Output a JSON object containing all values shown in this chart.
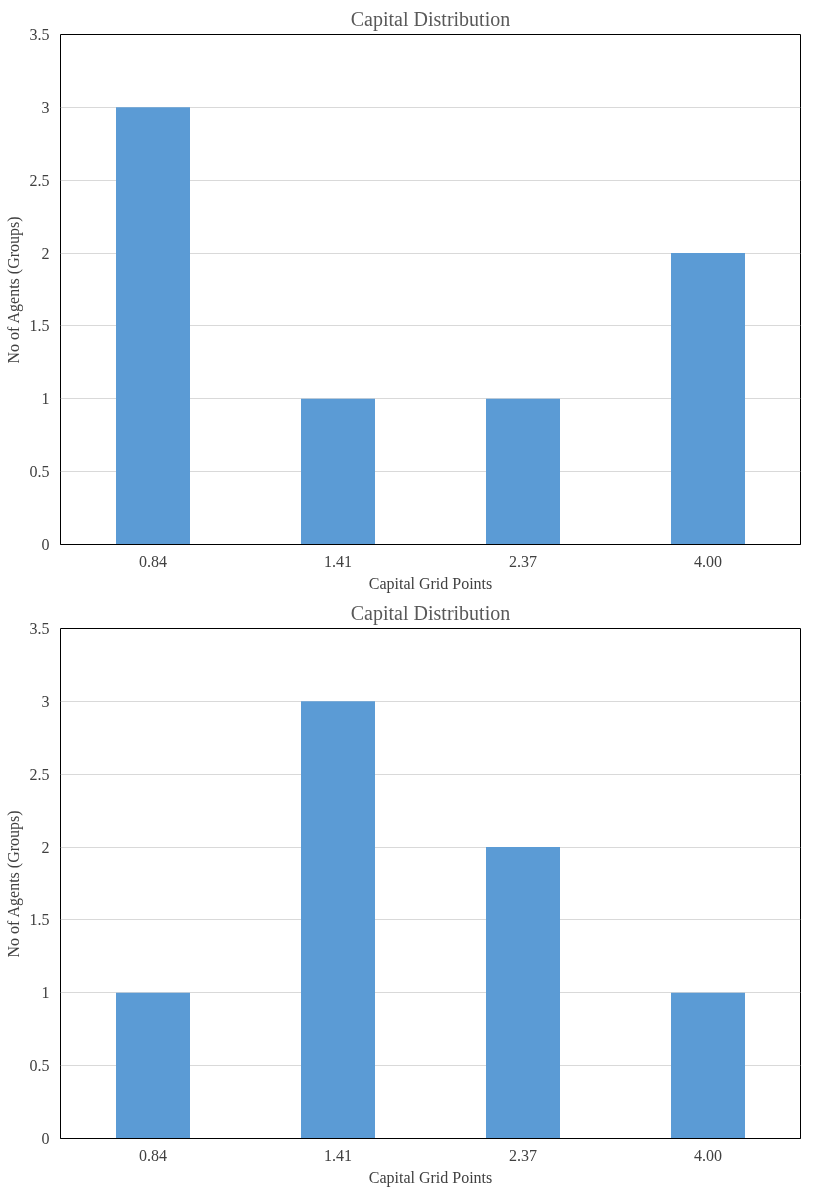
{
  "chart_data": [
    {
      "type": "bar",
      "title": "Capital Distribution",
      "xlabel": "Capital Grid Points",
      "ylabel": "No of Agents (Groups)",
      "categories": [
        "0.84",
        "1.41",
        "2.37",
        "4.00"
      ],
      "values": [
        3,
        1,
        1,
        2
      ],
      "color": "#5b9bd5",
      "ylim": [
        0,
        3.5
      ],
      "yticks": [
        0,
        0.5,
        1,
        1.5,
        2,
        2.5,
        3,
        3.5
      ],
      "grid": "y"
    },
    {
      "type": "bar",
      "title": "Capital Distribution",
      "xlabel": "Capital Grid Points",
      "ylabel": "No of Agents (Groups)",
      "categories": [
        "0.84",
        "1.41",
        "2.37",
        "4.00"
      ],
      "values": [
        1,
        3,
        2,
        1
      ],
      "color": "#5b9bd5",
      "ylim": [
        0,
        3.5
      ],
      "yticks": [
        0,
        0.5,
        1,
        1.5,
        2,
        2.5,
        3,
        3.5
      ],
      "grid": "y"
    }
  ]
}
